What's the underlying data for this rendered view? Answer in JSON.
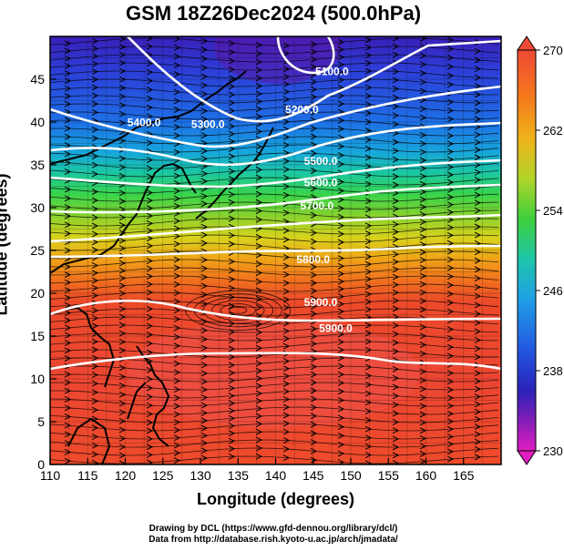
{
  "title": "GSM 18Z26Dec2024 (500.0hPa)",
  "axes": {
    "xlabel": "Longitude (degrees)",
    "ylabel": "Latitude  (degrees)",
    "xlim": [
      110,
      170
    ],
    "ylim": [
      0,
      50
    ],
    "xticks": [
      110,
      115,
      120,
      125,
      130,
      135,
      140,
      145,
      150,
      155,
      160,
      165
    ],
    "yticks": [
      0,
      5,
      10,
      15,
      20,
      25,
      30,
      35,
      40,
      45
    ]
  },
  "colorbar": {
    "range": [
      230,
      270
    ],
    "tick_labels": [
      "270",
      "262",
      "254",
      "246",
      "238",
      "230"
    ],
    "tick_values": [
      270,
      262,
      254,
      246,
      238,
      230
    ]
  },
  "contour_labels": [
    "5100.0",
    "5200.0",
    "5300.0",
    "5400.0",
    "5500.0",
    "5600.0",
    "5700.0",
    "5800.0",
    "5900.0",
    "5900.0"
  ],
  "credits": {
    "line1": "Drawing by DCL (https://www.gfd-dennou.org/library/dcl/)",
    "line2": "Data from http://database.rish.kyoto-u.ac.jp/arch/jmadata/"
  },
  "chart_data": {
    "type": "heatmap",
    "title": "GSM 18Z26Dec2024 (500.0hPa)",
    "xlabel": "Longitude (degrees)",
    "ylabel": "Latitude  (degrees)",
    "xlim": [
      110,
      170
    ],
    "ylim": [
      0,
      50
    ],
    "color_range": [
      230,
      270
    ],
    "temperature_bands": [
      {
        "lat": 0,
        "value": 267
      },
      {
        "lat": 10,
        "value": 266
      },
      {
        "lat": 20,
        "value": 264
      },
      {
        "lat": 25,
        "value": 262
      },
      {
        "lat": 30,
        "value": 256
      },
      {
        "lat": 35,
        "value": 250
      },
      {
        "lat": 40,
        "value": 245
      },
      {
        "lat": 45,
        "value": 240
      },
      {
        "lat": 50,
        "value": 236
      }
    ],
    "contours": [
      {
        "label": "5100.0",
        "lon": 147.5,
        "lat": 45.5
      },
      {
        "label": "5200.0",
        "lon": 143.5,
        "lat": 41.0
      },
      {
        "label": "5300.0",
        "lon": 131.0,
        "lat": 39.3
      },
      {
        "label": "5400.0",
        "lon": 122.5,
        "lat": 39.5
      },
      {
        "label": "5500.0",
        "lon": 146.0,
        "lat": 35.0
      },
      {
        "label": "5600.0",
        "lon": 146.0,
        "lat": 32.5
      },
      {
        "label": "5700.0",
        "lon": 145.5,
        "lat": 29.8
      },
      {
        "label": "5800.0",
        "lon": 145.0,
        "lat": 23.5
      },
      {
        "label": "5900.0",
        "lon": 146.0,
        "lat": 18.5
      },
      {
        "label": "5900.0",
        "lon": 148.0,
        "lat": 15.5
      }
    ]
  }
}
